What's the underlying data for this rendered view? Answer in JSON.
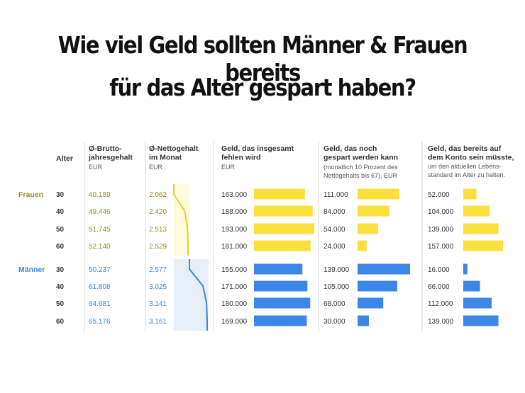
{
  "headline": {
    "line1": "Wie viel Geld sollten Männer & Frauen bereits",
    "line2": "für das Alter gespart haben?"
  },
  "chart_data": {
    "type": "table",
    "colors": {
      "frauen": "#9a8a1f",
      "maenner": "#3b86d6",
      "bar_frauen": "#fae03c",
      "bar_maenner": "#3b86e6",
      "area_frauen": "#fdfbdc",
      "area_maenner": "#e6eef7",
      "label": "#333333",
      "subtext": "#555555",
      "divider": "#d8d8d8"
    },
    "columns": [
      {
        "title": "Alter",
        "sub": ""
      },
      {
        "title": "Ø-Brutto-\njahresgehalt",
        "sub": "EUR"
      },
      {
        "title": "Ø-Nettogehalt\nim Monat",
        "sub": "EUR"
      },
      {
        "title": "Geld, das insgesamt\nfehlen wird",
        "sub": "EUR"
      },
      {
        "title": "Geld, das noch\ngespart werden kann",
        "sub": "(monatlich 10 Prozent des\nNettogehalts bis 67), EUR"
      },
      {
        "title": "Geld, das bereits auf\ndem Konto sein müsste,",
        "sub": "um den aktuellen Lebens-\nstandard im Alter zu halten."
      }
    ],
    "groups": [
      {
        "name": "Frauen",
        "rows": [
          {
            "age": "30",
            "brutto": "40.189",
            "netto": "2.062",
            "fehlen": 163000,
            "fehlen_label": "163.000",
            "gespart": 111000,
            "gespart_label": "111.000",
            "konto": 52000,
            "konto_label": "52.000"
          },
          {
            "age": "40",
            "brutto": "49.446",
            "netto": "2.420",
            "fehlen": 188000,
            "fehlen_label": "188.000",
            "gespart": 84000,
            "gespart_label": "84.000",
            "konto": 104000,
            "konto_label": "104.000"
          },
          {
            "age": "50",
            "brutto": "51.745",
            "netto": "2.513",
            "fehlen": 193000,
            "fehlen_label": "193.000",
            "gespart": 54000,
            "gespart_label": "54.000",
            "konto": 139000,
            "konto_label": "139.000"
          },
          {
            "age": "60",
            "brutto": "52.140",
            "netto": "2.529",
            "fehlen": 181000,
            "fehlen_label": "181.000",
            "gespart": 24000,
            "gespart_label": "24.000",
            "konto": 157000,
            "konto_label": "157.000"
          }
        ]
      },
      {
        "name": "Männer",
        "rows": [
          {
            "age": "30",
            "brutto": "50.237",
            "netto": "2.577",
            "fehlen": 155000,
            "fehlen_label": "155.000",
            "gespart": 139000,
            "gespart_label": "139.000",
            "konto": 16000,
            "konto_label": "16.000"
          },
          {
            "age": "40",
            "brutto": "61.808",
            "netto": "3.025",
            "fehlen": 171000,
            "fehlen_label": "171.000",
            "gespart": 105000,
            "gespart_label": "105.000",
            "konto": 66000,
            "konto_label": "66.000"
          },
          {
            "age": "50",
            "brutto": "64.681",
            "netto": "3.141",
            "fehlen": 180000,
            "fehlen_label": "180.000",
            "gespart": 68000,
            "gespart_label": "68.000",
            "konto": 112000,
            "konto_label": "112.000"
          },
          {
            "age": "60",
            "brutto": "65.176",
            "netto": "3.161",
            "fehlen": 169000,
            "fehlen_label": "169.000",
            "gespart": 30000,
            "gespart_label": "30.000",
            "konto": 139000,
            "konto_label": "139.000"
          }
        ]
      }
    ]
  }
}
